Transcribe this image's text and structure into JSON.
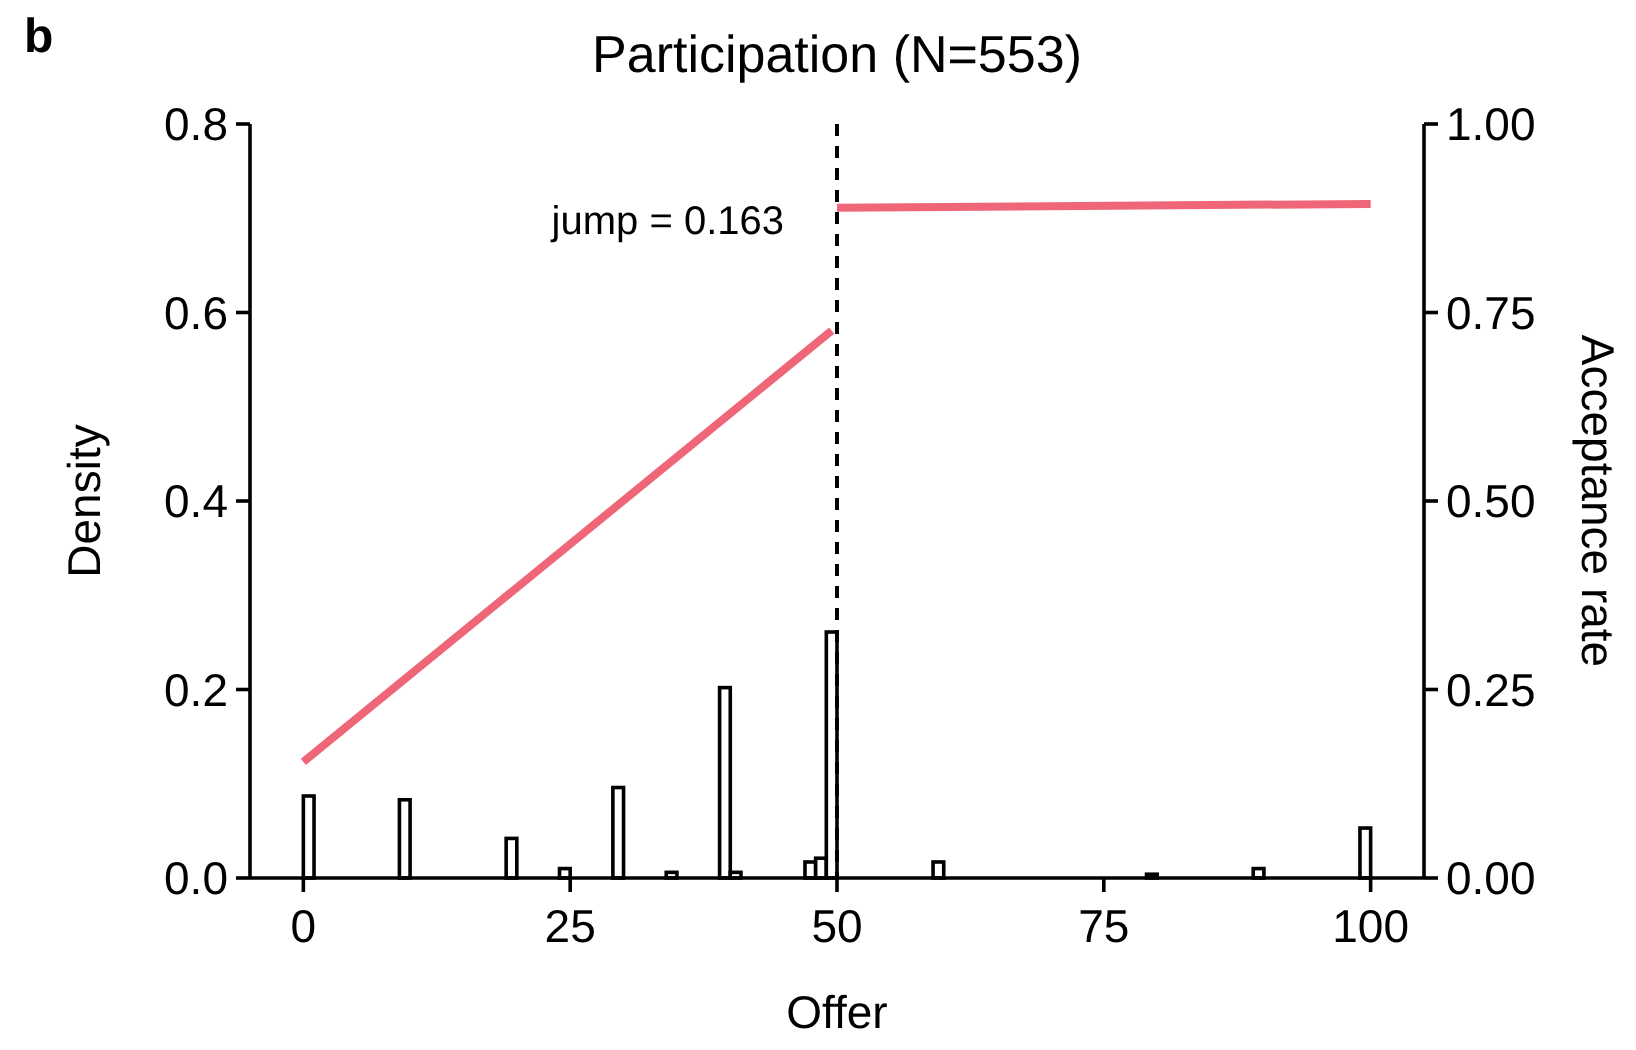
{
  "chart_data": {
    "type": "histogram",
    "title": "Participation (N=553)",
    "xlabel": "Offer",
    "ylabel": "Density",
    "y2label": "Acceptance rate",
    "annotations": [
      "b",
      "jump = 0.163"
    ],
    "bins": [
      0,
      1,
      2,
      3,
      4,
      5,
      6,
      7,
      8,
      9,
      10,
      11,
      12,
      13,
      14,
      15,
      16,
      17,
      18,
      19,
      20,
      21,
      22,
      23,
      24,
      25,
      26,
      27,
      28,
      29,
      30,
      31,
      32,
      33,
      34,
      35,
      36,
      37,
      38,
      39,
      40,
      41,
      42,
      43,
      44,
      45,
      46,
      47,
      48,
      49,
      50,
      51,
      52,
      53,
      54,
      55,
      56,
      57,
      58,
      59,
      60,
      61,
      62,
      63,
      64,
      65,
      66,
      67,
      68,
      69,
      70,
      71,
      72,
      73,
      74,
      75,
      76,
      77,
      78,
      79,
      80,
      81,
      82,
      83,
      84,
      85,
      86,
      87,
      88,
      89,
      90,
      91,
      92,
      93,
      94,
      95,
      96,
      97,
      98,
      99,
      100
    ],
    "values": [
      0.087,
      0,
      0,
      0,
      null,
      0,
      0,
      0,
      0,
      0.083,
      0,
      0,
      0,
      0,
      null,
      0,
      0,
      0,
      0,
      0.042,
      0,
      0,
      0,
      0,
      0.01,
      0,
      0,
      0,
      0,
      0.096,
      0,
      0,
      0,
      0,
      0.006,
      0,
      0,
      0,
      0,
      0.202,
      0.006,
      0,
      0,
      0,
      0,
      null,
      0,
      0.017,
      0.021,
      0.261,
      0,
      0,
      0,
      0,
      null,
      0,
      0,
      0,
      0,
      0.017,
      0,
      0,
      0,
      0,
      0,
      0,
      0,
      0,
      0,
      null,
      0,
      0,
      0,
      0,
      0,
      0,
      0,
      0,
      0,
      0.004,
      0,
      0,
      0,
      0,
      0,
      0,
      0,
      0,
      0,
      0.01,
      0,
      0,
      0,
      0,
      0,
      0,
      0,
      0,
      0,
      0.053
    ],
    "color": "#000000",
    "series": [
      {
        "type": "line",
        "axis": "y2",
        "color": "#ee6677",
        "x": [
          0,
          49.5
        ],
        "values": [
          0.154,
          0.726
        ]
      },
      {
        "type": "line",
        "axis": "y2",
        "color": "#ee6677",
        "x": [
          50,
          100
        ],
        "values": [
          0.889,
          0.894
        ]
      }
    ],
    "ref_lines": [
      {
        "axis": "x",
        "value": 50,
        "color": "#000000",
        "line_style": "dashed"
      }
    ],
    "xlim": [
      -5,
      105
    ],
    "xticks": [
      0,
      25,
      50,
      75,
      100
    ],
    "ylim": [
      0,
      0.8
    ],
    "yticks": [
      {
        "value": 0,
        "label": "0.0"
      },
      {
        "value": 0.2,
        "label": "0.2"
      },
      {
        "value": 0.4,
        "label": "0.4"
      },
      {
        "value": 0.6,
        "label": "0.6"
      },
      {
        "value": 0.8,
        "label": "0.8"
      }
    ],
    "y2lim": [
      0,
      1
    ],
    "y2ticks": [
      {
        "value": 0,
        "label": "0.00"
      },
      {
        "value": 0.25,
        "label": "0.25"
      },
      {
        "value": 0.5,
        "label": "0.50"
      },
      {
        "value": 0.75,
        "label": "0.75"
      },
      {
        "value": 1,
        "label": "1.00"
      }
    ],
    "grid": false
  }
}
